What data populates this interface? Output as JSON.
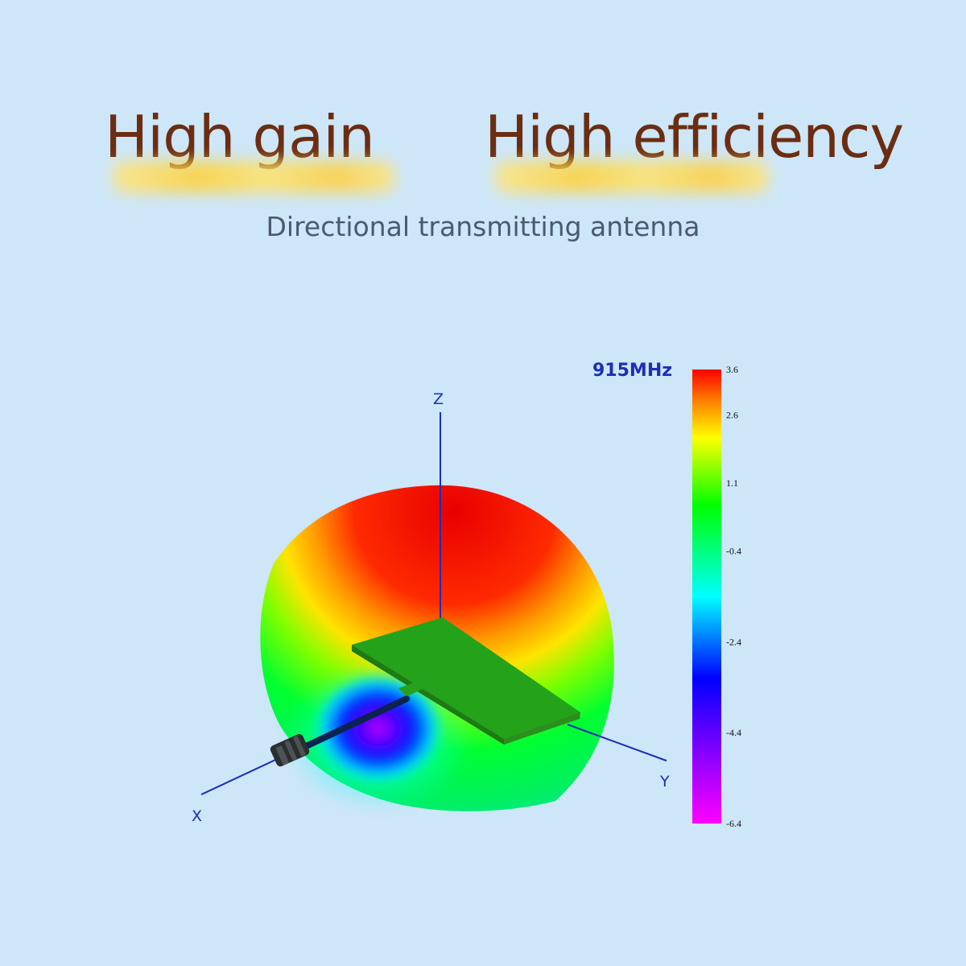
{
  "headline": {
    "left": "High gain",
    "right": "High efficiency"
  },
  "subtitle": "Directional transmitting antenna",
  "plot": {
    "frequency": "915MHz",
    "axes": {
      "x": "X",
      "y": "Y",
      "z": "Z"
    },
    "colorbar": {
      "ticks": [
        {
          "label": "3.6",
          "value": 3.6
        },
        {
          "label": "2.6",
          "value": 2.6
        },
        {
          "label": "1.1",
          "value": 1.1
        },
        {
          "label": "-0.4",
          "value": -0.4
        },
        {
          "label": "-2.4",
          "value": -2.4
        },
        {
          "label": "-4.4",
          "value": -4.4
        },
        {
          "label": "-6.4",
          "value": -6.4
        }
      ],
      "range": [
        -6.4,
        3.6
      ],
      "colors": [
        "#ff00ff",
        "#8000ff",
        "#0000ff",
        "#00ffff",
        "#00ff00",
        "#ffff00",
        "#ff0000"
      ]
    }
  }
}
